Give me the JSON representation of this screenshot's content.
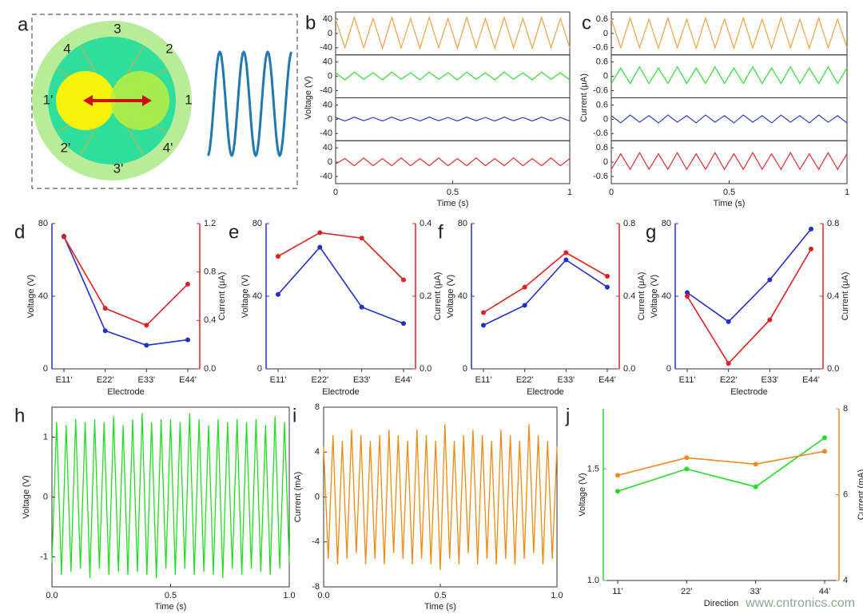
{
  "panel_a": {
    "label": "a",
    "segment_labels": [
      "3",
      "2",
      "4",
      "1'",
      "1",
      "2'",
      "4'",
      "3'"
    ]
  },
  "watermark": "www.cntronics.com",
  "chart_data": [
    {
      "type": "stacked-line",
      "label": "b",
      "xlabel": "Time (s)",
      "ylabel": "Voltage (V)",
      "xlim": [
        0,
        1
      ],
      "xticks": [
        0,
        0.5,
        1
      ],
      "x": [
        0,
        0.04,
        0.08,
        0.12,
        0.16,
        0.2,
        0.24,
        0.28,
        0.32,
        0.36,
        0.4,
        0.44,
        0.48,
        0.52,
        0.56,
        0.6,
        0.64,
        0.68,
        0.72,
        0.76,
        0.8,
        0.84,
        0.88,
        0.92,
        0.96,
        1
      ],
      "series": [
        {
          "color": "#f5a040",
          "ylim": [
            -60,
            60
          ],
          "yticks": [
            -40,
            0,
            40
          ],
          "values": [
            40,
            -40,
            45,
            -40,
            42,
            -42,
            45,
            -40,
            42,
            -42,
            45,
            -40,
            42,
            -42,
            45,
            -40,
            42,
            -42,
            45,
            -40,
            42,
            -42,
            45,
            -40,
            42,
            -40
          ]
        },
        {
          "color": "#33dd33",
          "ylim": [
            -60,
            60
          ],
          "yticks": [
            -40,
            0,
            40
          ],
          "values": [
            10,
            -10,
            12,
            -8,
            10,
            -10,
            12,
            -8,
            10,
            -10,
            12,
            -8,
            10,
            -10,
            12,
            -8,
            10,
            -10,
            12,
            -8,
            10,
            -10,
            12,
            -8,
            10,
            -10
          ]
        },
        {
          "color": "#3040c0",
          "ylim": [
            -60,
            60
          ],
          "yticks": [
            -40,
            0,
            40
          ],
          "values": [
            5,
            -5,
            6,
            -4,
            5,
            -5,
            6,
            -4,
            5,
            -5,
            6,
            -4,
            5,
            -5,
            6,
            -4,
            5,
            -5,
            6,
            -4,
            5,
            -5,
            6,
            -4,
            5,
            -5
          ]
        },
        {
          "color": "#e03030",
          "ylim": [
            -60,
            60
          ],
          "yticks": [
            -40,
            0,
            40
          ],
          "values": [
            -5,
            10,
            -10,
            12,
            -10,
            10,
            -10,
            12,
            -10,
            10,
            -10,
            12,
            -10,
            10,
            -10,
            12,
            -10,
            10,
            -10,
            12,
            -10,
            10,
            -10,
            12,
            -10,
            10
          ]
        }
      ]
    },
    {
      "type": "stacked-line",
      "label": "c",
      "xlabel": "Time (s)",
      "ylabel": "Current (μA)",
      "xlim": [
        0,
        1
      ],
      "xticks": [
        0,
        0.5,
        1
      ],
      "x": [
        0,
        0.04,
        0.08,
        0.12,
        0.16,
        0.2,
        0.24,
        0.28,
        0.32,
        0.36,
        0.4,
        0.44,
        0.48,
        0.52,
        0.56,
        0.6,
        0.64,
        0.68,
        0.72,
        0.76,
        0.8,
        0.84,
        0.88,
        0.92,
        0.96,
        1
      ],
      "series": [
        {
          "color": "#f5a040",
          "ylim": [
            -0.9,
            0.9
          ],
          "yticks": [
            -0.6,
            0,
            0.6
          ],
          "values": [
            0.6,
            -0.6,
            0.65,
            -0.6,
            0.6,
            -0.62,
            0.65,
            -0.6,
            0.6,
            -0.62,
            0.65,
            -0.6,
            0.6,
            -0.62,
            0.65,
            -0.6,
            0.6,
            -0.62,
            0.65,
            -0.6,
            0.6,
            -0.62,
            0.65,
            -0.6,
            0.6,
            -0.6
          ]
        },
        {
          "color": "#33dd33",
          "ylim": [
            -0.9,
            0.9
          ],
          "yticks": [
            -0.6,
            0,
            0.6
          ],
          "values": [
            -0.3,
            0.35,
            -0.3,
            0.4,
            -0.3,
            0.35,
            -0.3,
            0.4,
            -0.3,
            0.35,
            -0.3,
            0.4,
            -0.3,
            0.35,
            -0.3,
            0.4,
            -0.3,
            0.35,
            -0.3,
            0.4,
            -0.3,
            0.35,
            -0.3,
            0.4,
            -0.3,
            0.35
          ]
        },
        {
          "color": "#3040c0",
          "ylim": [
            -0.9,
            0.9
          ],
          "yticks": [
            -0.6,
            0,
            0.6
          ],
          "values": [
            0.15,
            -0.15,
            0.18,
            -0.12,
            0.15,
            -0.15,
            0.18,
            -0.12,
            0.15,
            -0.15,
            0.18,
            -0.12,
            0.15,
            -0.15,
            0.18,
            -0.12,
            0.15,
            -0.15,
            0.18,
            -0.12,
            0.15,
            -0.15,
            0.18,
            -0.12,
            0.15,
            -0.15
          ]
        },
        {
          "color": "#e03030",
          "ylim": [
            -0.9,
            0.9
          ],
          "yticks": [
            -0.6,
            0,
            0.6
          ],
          "values": [
            -0.3,
            0.35,
            -0.3,
            0.4,
            -0.3,
            0.35,
            -0.3,
            0.4,
            -0.3,
            0.35,
            -0.3,
            0.4,
            -0.3,
            0.35,
            -0.3,
            0.4,
            -0.3,
            0.35,
            -0.3,
            0.4,
            -0.3,
            0.35,
            -0.3,
            0.4,
            -0.3,
            0.35
          ]
        }
      ]
    },
    {
      "type": "dual-line",
      "label": "d",
      "xlabel": "Electrode",
      "ylabel": "Voltage (V)",
      "y2label": "Current (μA)",
      "categories": [
        "E11'",
        "E22'",
        "E33'",
        "E44'"
      ],
      "ylim": [
        0,
        80
      ],
      "yticks": [
        0,
        40,
        80
      ],
      "y2lim": [
        0,
        1.2
      ],
      "y2ticks": [
        {
          "value": 0,
          "label": "0.0"
        },
        0.4,
        0.8,
        1.2
      ],
      "series": [
        {
          "color": "#2030c8",
          "values": [
            73,
            21,
            13,
            16
          ]
        },
        {
          "color": "#e02020",
          "axis": "y2",
          "values": [
            1.09,
            0.5,
            0.36,
            0.7
          ]
        }
      ]
    },
    {
      "type": "dual-line",
      "label": "e",
      "xlabel": "Electrode",
      "ylabel": "Voltage (V)",
      "y2label": "Current (μA)",
      "categories": [
        "E11'",
        "E22'",
        "E33'",
        "E44'"
      ],
      "ylim": [
        0,
        80
      ],
      "yticks": [
        0,
        40,
        80
      ],
      "y2lim": [
        0,
        0.4
      ],
      "y2ticks": [
        {
          "value": 0,
          "label": "0.0"
        },
        0.2,
        0.4
      ],
      "series": [
        {
          "color": "#2030c8",
          "values": [
            41,
            67,
            34,
            25
          ]
        },
        {
          "color": "#e02020",
          "axis": "y2",
          "values": [
            0.31,
            0.375,
            0.36,
            0.245
          ]
        }
      ]
    },
    {
      "type": "dual-line",
      "label": "f",
      "xlabel": "Electrode",
      "ylabel": "Voltage (V)",
      "y2label": "Current (μA)",
      "categories": [
        "E11'",
        "E22'",
        "E33'",
        "E44'"
      ],
      "ylim": [
        0,
        80
      ],
      "yticks": [
        0,
        40,
        80
      ],
      "y2lim": [
        0,
        0.8
      ],
      "y2ticks": [
        {
          "value": 0,
          "label": "0.0"
        },
        0.4,
        0.8
      ],
      "series": [
        {
          "color": "#2030c8",
          "values": [
            24,
            35,
            60,
            45
          ]
        },
        {
          "color": "#e02020",
          "axis": "y2",
          "values": [
            0.31,
            0.45,
            0.64,
            0.51
          ]
        }
      ]
    },
    {
      "type": "dual-line",
      "label": "g",
      "xlabel": "Electrode",
      "ylabel": "Voltage (V)",
      "y2label": "Current (μA)",
      "categories": [
        "E11'",
        "E22'",
        "E33'",
        "E44'"
      ],
      "ylim": [
        0,
        80
      ],
      "yticks": [
        0,
        40,
        80
      ],
      "y2lim": [
        0,
        0.8
      ],
      "y2ticks": [
        {
          "value": 0,
          "label": "0.0"
        },
        0.4,
        0.8
      ],
      "series": [
        {
          "color": "#2030c8",
          "values": [
            42,
            26,
            49,
            77
          ]
        },
        {
          "color": "#e02020",
          "axis": "y2",
          "values": [
            0.4,
            0.03,
            0.27,
            0.66
          ]
        }
      ]
    },
    {
      "type": "line",
      "label": "h",
      "xlabel": "Time (s)",
      "ylabel": "Voltage (V)",
      "xlim": [
        0,
        1
      ],
      "xticks": [
        {
          "value": 0,
          "label": "0.0"
        },
        0.5,
        {
          "value": 1,
          "label": "1.0"
        }
      ],
      "ylim": [
        -1.5,
        1.5
      ],
      "yticks": [
        -1,
        0,
        1
      ],
      "x": [
        0,
        0.02,
        0.04,
        0.06,
        0.08,
        0.1,
        0.12,
        0.14,
        0.16,
        0.18,
        0.2,
        0.22,
        0.24,
        0.26,
        0.28,
        0.3,
        0.32,
        0.34,
        0.36,
        0.38,
        0.4,
        0.42,
        0.44,
        0.46,
        0.48,
        0.5,
        0.52,
        0.54,
        0.56,
        0.58,
        0.6,
        0.62,
        0.64,
        0.66,
        0.68,
        0.7,
        0.72,
        0.74,
        0.76,
        0.78,
        0.8,
        0.82,
        0.84,
        0.86,
        0.88,
        0.9,
        0.92,
        0.94,
        0.96,
        0.98,
        1
      ],
      "series": [
        {
          "color": "#22dd22",
          "values": [
            -1.1,
            1.25,
            -1.3,
            1.2,
            -1.25,
            1.3,
            -1.2,
            1.25,
            -1.35,
            1.3,
            -1.2,
            1.25,
            -1.3,
            1.35,
            -1.25,
            1.2,
            -1.3,
            1.3,
            -1.25,
            1.4,
            -1.3,
            1.25,
            -1.35,
            1.3,
            -1.2,
            1.3,
            -1.3,
            1.25,
            -1.2,
            1.4,
            -1.3,
            1.3,
            -1.25,
            1.2,
            -1.3,
            1.3,
            -1.35,
            1.25,
            -1.2,
            1.3,
            -1.3,
            1.25,
            -1.2,
            1.3,
            -1.25,
            1.2,
            -1.3,
            1.35,
            -1.2,
            1.25,
            -1.1
          ]
        }
      ]
    },
    {
      "type": "line",
      "label": "i",
      "xlabel": "Time (s)",
      "ylabel": "Current (mA)",
      "xlim": [
        0,
        1
      ],
      "xticks": [
        {
          "value": 0,
          "label": "0.0"
        },
        0.5,
        {
          "value": 1,
          "label": "1.0"
        }
      ],
      "ylim": [
        -8,
        8
      ],
      "yticks": [
        -8,
        -4,
        0,
        4,
        8
      ],
      "x": [
        0,
        0.02,
        0.04,
        0.06,
        0.08,
        0.1,
        0.12,
        0.14,
        0.16,
        0.18,
        0.2,
        0.22,
        0.24,
        0.26,
        0.28,
        0.3,
        0.32,
        0.34,
        0.36,
        0.38,
        0.4,
        0.42,
        0.44,
        0.46,
        0.48,
        0.5,
        0.52,
        0.54,
        0.56,
        0.58,
        0.6,
        0.62,
        0.64,
        0.66,
        0.68,
        0.7,
        0.72,
        0.74,
        0.76,
        0.78,
        0.8,
        0.82,
        0.84,
        0.86,
        0.88,
        0.9,
        0.92,
        0.94,
        0.96,
        0.98,
        1
      ],
      "series": [
        {
          "color": "#ee8a10",
          "values": [
            4.5,
            -5.5,
            5.5,
            -6,
            5,
            -5.5,
            6,
            -5,
            5.5,
            -6,
            5,
            -5.5,
            5.5,
            -6,
            6,
            -5,
            5.5,
            -5.5,
            5,
            -6,
            6,
            -5.5,
            5.5,
            -6,
            5,
            -6.5,
            6.5,
            -5.5,
            5,
            -6,
            5.5,
            -5,
            6,
            -6,
            5.5,
            -5.5,
            5,
            -6,
            6,
            -5.5,
            5.5,
            -6,
            5,
            -5.5,
            6.5,
            -5,
            5.5,
            -6,
            5,
            -5.5,
            4.5
          ]
        }
      ]
    },
    {
      "type": "dual-line",
      "label": "j",
      "xlabel": "Direction",
      "ylabel": "Voltage (V)",
      "y2label": "Current (mA)",
      "categories": [
        "11'",
        "22'",
        "33'",
        "44'"
      ],
      "ylim": [
        1.0,
        1.77
      ],
      "yticks": [
        {
          "value": 1,
          "label": "1.0"
        },
        1.5
      ],
      "y2lim": [
        4,
        8
      ],
      "y2ticks": [
        4,
        6,
        8
      ],
      "series": [
        {
          "color": "#22dd22",
          "values": [
            1.4,
            1.5,
            1.42,
            1.64
          ]
        },
        {
          "color": "#f08a20",
          "axis": "y2",
          "values": [
            6.45,
            6.86,
            6.71,
            7.01
          ]
        }
      ]
    }
  ]
}
